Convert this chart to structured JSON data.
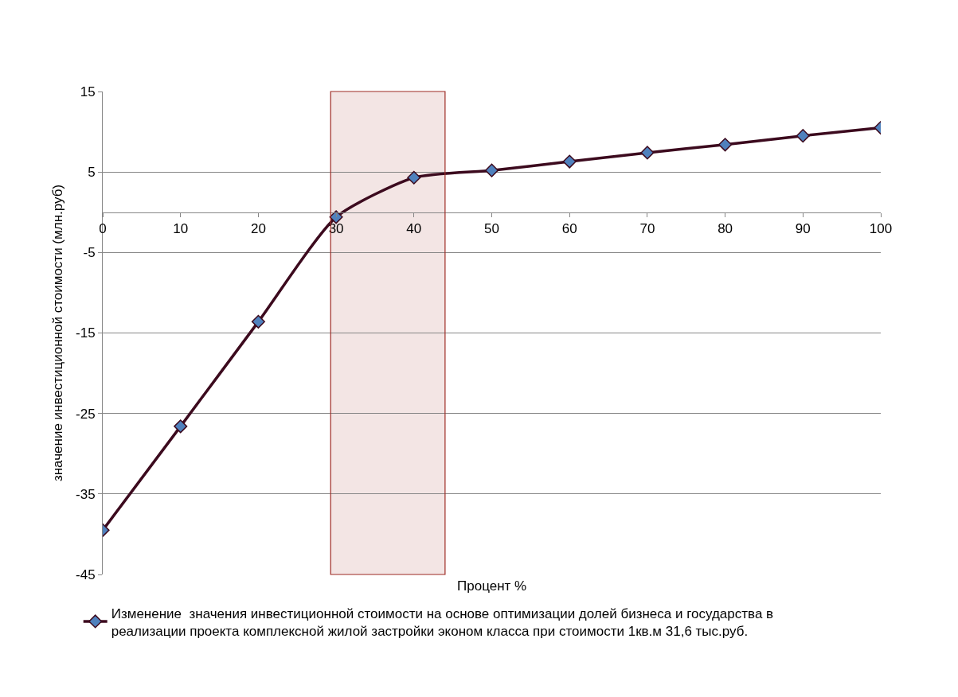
{
  "chart_data": {
    "type": "line",
    "xlabel": "Процент %",
    "ylabel": "значение инвестиционной стоимости (млн.руб)",
    "x": [
      0,
      10,
      20,
      30,
      40,
      50,
      60,
      70,
      80,
      90,
      100
    ],
    "series": [
      {
        "name": "Изменение  значения инвестиционной стоимости на основе оптимизации долей бизнеса и государства в реализации проекта комплексной жилой застройки эконом класса при стоимости 1кв.м 31,6 тыс.руб.",
        "color": "#3c0a1e",
        "values": [
          -39.5,
          -26.6,
          -13.6,
          -0.6,
          4.3,
          5.2,
          6.3,
          7.4,
          8.4,
          9.5,
          10.5
        ]
      }
    ],
    "xlim": [
      0,
      100
    ],
    "xticks": [
      0,
      10,
      20,
      30,
      40,
      50,
      60,
      70,
      80,
      90,
      100
    ],
    "ylim": [
      -45,
      15
    ],
    "yticks": [
      -45,
      -35,
      -25,
      -15,
      -5,
      5,
      15
    ],
    "bands": [
      {
        "axis": "x",
        "from": 29.3,
        "to": 44,
        "color": "#a0302a"
      }
    ],
    "grid": "y",
    "legend": "bottom",
    "marker": "diamond",
    "line_style": "solid"
  }
}
